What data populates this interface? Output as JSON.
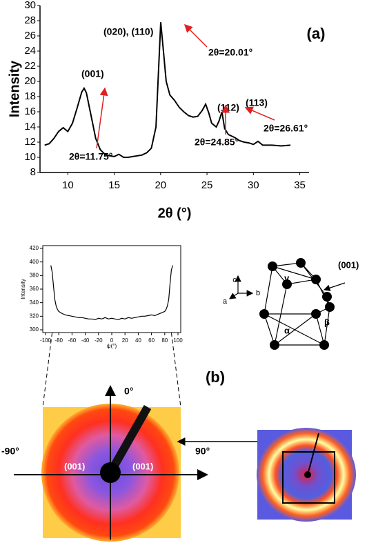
{
  "chart_data": [
    {
      "type": "line",
      "xlabel": "2θ (°)",
      "ylabel": "Intensity",
      "x": [
        7.5,
        8,
        8.5,
        9,
        9.5,
        10,
        10.5,
        11,
        11.5,
        11.75,
        12,
        12.5,
        13,
        13.5,
        14,
        14.5,
        15,
        15.5,
        16,
        16.5,
        17,
        17.5,
        18,
        18.5,
        19,
        19.5,
        19.8,
        20.01,
        20.3,
        20.6,
        21,
        21.5,
        22,
        22.5,
        23,
        23.5,
        24,
        24.5,
        24.85,
        25.2,
        25.5,
        26,
        26.3,
        26.61,
        26.9,
        27.3,
        28,
        28.5,
        29,
        29.5,
        30,
        30.5,
        31,
        32,
        33,
        34
      ],
      "values": [
        11.6,
        11.8,
        12.5,
        13.4,
        13.9,
        13.4,
        14.5,
        16.5,
        18.6,
        19.1,
        18.5,
        15.5,
        12.5,
        11,
        10.4,
        10.2,
        10.1,
        10.4,
        10,
        10,
        10.1,
        10.2,
        10.3,
        10.6,
        11.2,
        14,
        22,
        27.8,
        24,
        20,
        18.2,
        17.5,
        16.6,
        16,
        15.5,
        15.3,
        15.4,
        16.2,
        17,
        15.8,
        14.5,
        14,
        14.8,
        16,
        13.8,
        13,
        12.6,
        12.2,
        12,
        11.9,
        11.7,
        12.1,
        11.6,
        11.6,
        11.5,
        11.6
      ],
      "color": "#000000",
      "xlim": [
        7,
        36
      ],
      "xticks": [
        10,
        15,
        20,
        25,
        30,
        35
      ],
      "ylim": [
        8,
        30
      ],
      "yticks": [
        8,
        10,
        12,
        14,
        16,
        18,
        20,
        22,
        24,
        26,
        28,
        30
      ],
      "annotations": [
        "(001)",
        "2θ=11.75°",
        "(020), (110)",
        "2θ=20.01°",
        "(112)",
        "2θ=24.85°",
        "(113)",
        "2θ=26.61°"
      ],
      "panel_label": "(a)"
    },
    {
      "type": "line",
      "xlabel": "ψ(°)",
      "ylabel": "Intensity",
      "x": [
        -92,
        -90,
        -88,
        -86,
        -84,
        -82,
        -80,
        -75,
        -70,
        -65,
        -60,
        -55,
        -50,
        -45,
        -40,
        -35,
        -30,
        -25,
        -20,
        -15,
        -10,
        -5,
        0,
        5,
        10,
        15,
        20,
        25,
        30,
        35,
        40,
        45,
        50,
        55,
        60,
        65,
        70,
        75,
        80,
        82,
        84,
        86,
        88,
        90,
        92
      ],
      "values": [
        395,
        385,
        365,
        345,
        335,
        330,
        327,
        324,
        322,
        321,
        320,
        319,
        318,
        318,
        317,
        316,
        316,
        315,
        317,
        316,
        318,
        316,
        317,
        316,
        315,
        317,
        316,
        318,
        317,
        318,
        319,
        320,
        320,
        321,
        322,
        321,
        323,
        325,
        327,
        330,
        335,
        345,
        368,
        388,
        395
      ],
      "color": "#000000",
      "xlim": [
        -100,
        100
      ],
      "xticks": [
        -100,
        -80,
        -60,
        -40,
        -20,
        0,
        20,
        40,
        60,
        80,
        100
      ],
      "ylim": [
        300,
        420
      ],
      "yticks": [
        300,
        320,
        340,
        360,
        380,
        400,
        420
      ],
      "panel_label": "(b)"
    }
  ],
  "crystal": {
    "axes": [
      "c",
      "a",
      "b"
    ],
    "plane": "(001)",
    "angles": [
      "γ",
      "β",
      "α"
    ]
  },
  "pattern": {
    "directions": [
      "0°",
      "-90°",
      "90°"
    ],
    "reflections": [
      "(001)",
      "(001)"
    ]
  }
}
